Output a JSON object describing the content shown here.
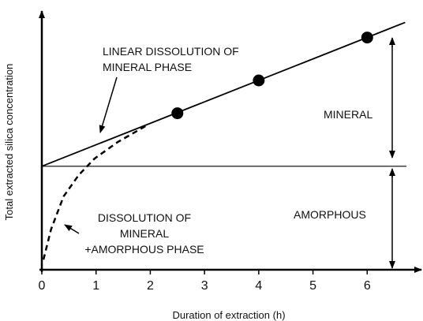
{
  "chart_data": {
    "type": "line",
    "xlabel": "Duration of extraction (h)",
    "ylabel": "Total extracted silica concentration",
    "xlim": [
      0,
      7
    ],
    "xticks": [
      0,
      1,
      2,
      3,
      4,
      5,
      6
    ],
    "ylim": [
      0,
      10
    ],
    "hline": 4.1,
    "series": [
      {
        "x": [
          0,
          6.7
        ],
        "values": [
          4.1,
          9.8
        ],
        "color": "#000000",
        "style": "solid"
      },
      {
        "x": [
          0.03,
          0.17,
          0.4,
          0.68,
          0.97,
          1.4,
          1.92
        ],
        "values": [
          0.4,
          1.6,
          2.9,
          3.75,
          4.4,
          5.06,
          5.7
        ],
        "color": "#000000",
        "style": "dashed"
      }
    ],
    "points": {
      "x": [
        2.5,
        4,
        6
      ],
      "values": [
        6.2,
        7.5,
        9.2
      ],
      "color": "#000000"
    },
    "annotations": {
      "linear": [
        "LINEAR DISSOLUTION OF",
        "MINERAL PHASE"
      ],
      "dissolution": [
        "DISSOLUTION OF",
        "MINERAL",
        "+AMORPHOUS PHASE"
      ],
      "mineral": "MINERAL",
      "amorphous": "AMORPHOUS"
    }
  }
}
